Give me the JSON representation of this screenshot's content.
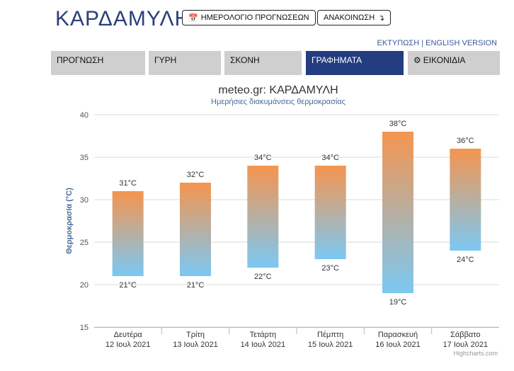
{
  "header": {
    "title": "ΚΑΡΔΑΜΥΛΗ",
    "calendar_button": "ΗΜΕΡΟΛΟΓΙΟ ΠΡΟΓΝΩΣΕΩΝ",
    "announcement_button": "ΑΝΑΚΟΙΝΩΣΗ",
    "print_link": "ΕΚΤΥΠΩΣΗ",
    "separator": "|",
    "english_link": "ENGLISH VERSION"
  },
  "tabs": [
    {
      "label": "ΠΡΟΓΝΩΣΗ"
    },
    {
      "label": "ΓΥΡΗ"
    },
    {
      "label": "ΣΚΟΝΗ"
    },
    {
      "label": "ΓΡΑΦΗΜΑΤΑ",
      "active": true
    },
    {
      "label": "ΕΙΚΟΝΙΔΙΑ"
    }
  ],
  "colors": {
    "title": "#2b3f7a",
    "active_tab": "#233d80",
    "tab": "#cfcfcf",
    "bar_top": "#f5954f",
    "bar_bottom": "#7bc8f3"
  },
  "chart_data": {
    "type": "bar",
    "title": "meteo.gr: ΚΑΡΔΑΜΥΛΗ",
    "subtitle": "Ημερήσιες διακυμάνσεις θερμοκρασίας",
    "ylabel": "Θερμοκρασία (°C)",
    "ylim": [
      15,
      40
    ],
    "yticks": [
      15,
      20,
      25,
      30,
      35,
      40
    ],
    "grid": true,
    "categories": [
      [
        "Δευτέρα",
        "12 Ιουλ 2021"
      ],
      [
        "Τρίτη",
        "13 Ιουλ 2021"
      ],
      [
        "Τετάρτη",
        "14 Ιουλ 2021"
      ],
      [
        "Πέμπτη",
        "15 Ιουλ 2021"
      ],
      [
        "Παρασκευή",
        "16 Ιουλ 2021"
      ],
      [
        "Σάββατο",
        "17 Ιουλ 2021"
      ]
    ],
    "low": [
      21,
      21,
      22,
      23,
      19,
      24
    ],
    "high": [
      31,
      32,
      34,
      34,
      38,
      36
    ],
    "low_labels": [
      "21°C",
      "21°C",
      "22°C",
      "23°C",
      "19°C",
      "24°C"
    ],
    "high_labels": [
      "31°C",
      "32°C",
      "34°C",
      "34°C",
      "38°C",
      "36°C"
    ],
    "credits": "Highcharts.com"
  }
}
